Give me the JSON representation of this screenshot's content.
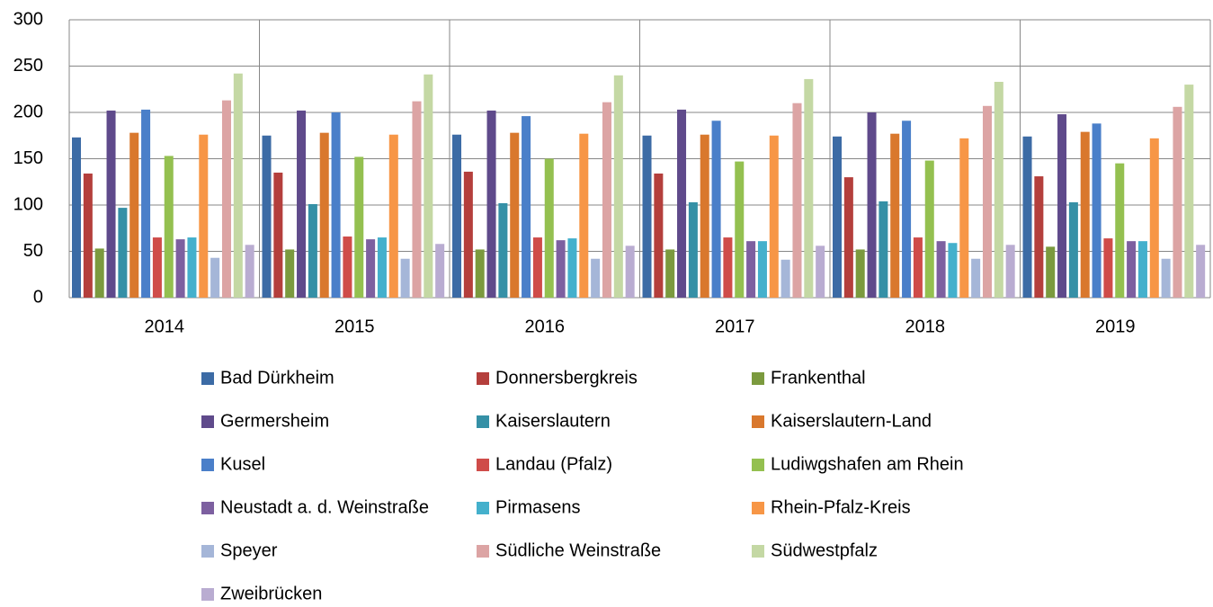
{
  "chart_data": {
    "type": "bar",
    "categories": [
      "2014",
      "2015",
      "2016",
      "2017",
      "2018",
      "2019"
    ],
    "series": [
      {
        "name": "Bad Dürkheim",
        "color": "#3c6ba5",
        "values": [
          173,
          175,
          176,
          175,
          174,
          174
        ]
      },
      {
        "name": "Donnersbergkreis",
        "color": "#b43f3c",
        "values": [
          134,
          135,
          136,
          134,
          130,
          131
        ]
      },
      {
        "name": "Frankenthal",
        "color": "#7b9a3e",
        "values": [
          53,
          52,
          52,
          52,
          52,
          55
        ]
      },
      {
        "name": "Germersheim",
        "color": "#5f4a8b",
        "values": [
          202,
          202,
          202,
          203,
          200,
          198
        ]
      },
      {
        "name": "Kaiserslautern",
        "color": "#3590a6",
        "values": [
          97,
          101,
          102,
          103,
          104,
          103
        ]
      },
      {
        "name": "Kaiserslautern-Land",
        "color": "#d9782d",
        "values": [
          178,
          178,
          178,
          176,
          177,
          179
        ]
      },
      {
        "name": "Kusel",
        "color": "#4a7fc9",
        "values": [
          203,
          200,
          196,
          191,
          191,
          188
        ]
      },
      {
        "name": "Landau (Pfalz)",
        "color": "#cf4c49",
        "values": [
          65,
          66,
          65,
          65,
          65,
          64
        ]
      },
      {
        "name": "Ludiwgshafen am Rhein",
        "color": "#94c050",
        "values": [
          153,
          152,
          150,
          147,
          148,
          145
        ]
      },
      {
        "name": "Neustadt a. d. Weinstraße",
        "color": "#7d60a0",
        "values": [
          63,
          63,
          62,
          61,
          61,
          61
        ]
      },
      {
        "name": "Pirmasens",
        "color": "#44b0cc",
        "values": [
          65,
          65,
          64,
          61,
          59,
          61
        ]
      },
      {
        "name": "Rhein-Pfalz-Kreis",
        "color": "#f79646",
        "values": [
          176,
          176,
          177,
          175,
          172,
          172
        ]
      },
      {
        "name": "Speyer",
        "color": "#a5b6d8",
        "values": [
          43,
          42,
          42,
          41,
          42,
          42
        ]
      },
      {
        "name": "Südliche Weinstraße",
        "color": "#dca4a4",
        "values": [
          213,
          212,
          211,
          210,
          207,
          206
        ]
      },
      {
        "name": "Südwestpfalz",
        "color": "#c4d8a4",
        "values": [
          242,
          241,
          240,
          236,
          233,
          230
        ]
      },
      {
        "name": "Zweibrücken",
        "color": "#b9acd1",
        "values": [
          57,
          58,
          56,
          56,
          57,
          57
        ]
      }
    ],
    "ylim": [
      0,
      300
    ],
    "yticks": [
      0,
      50,
      100,
      150,
      200,
      250,
      300
    ],
    "grid": true,
    "legend": "bottom"
  }
}
